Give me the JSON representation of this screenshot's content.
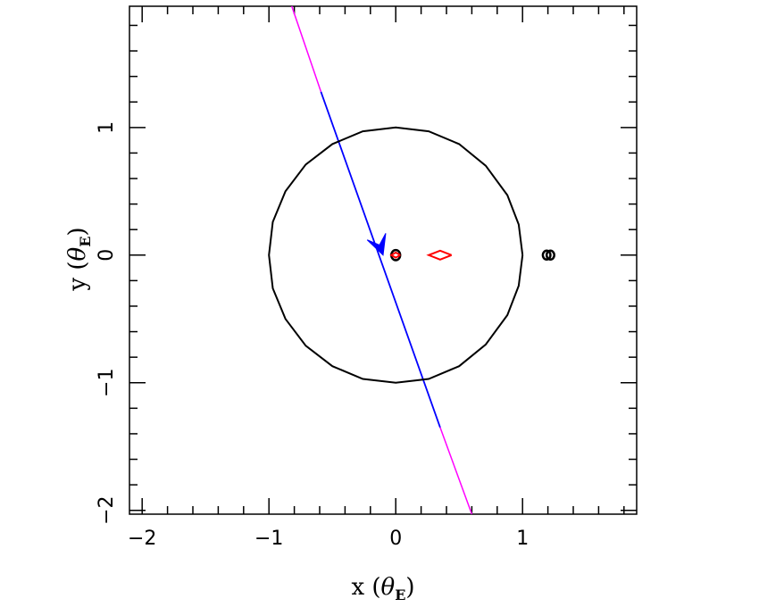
{
  "chart_data": {
    "type": "scatter",
    "title": "",
    "xlabel": {
      "prefix": "x (",
      "symbol": "θ",
      "subscript": "E",
      "suffix": ")"
    },
    "ylabel": {
      "prefix": "y (",
      "symbol": "θ",
      "subscript": "E",
      "suffix": ")"
    },
    "xlim": [
      -2.1,
      1.9
    ],
    "ylim": [
      -2.03,
      1.95
    ],
    "xticks": [
      {
        "value": -2,
        "label": "−2"
      },
      {
        "value": -1,
        "label": "−1"
      },
      {
        "value": 0,
        "label": "0"
      },
      {
        "value": 1,
        "label": "1"
      }
    ],
    "yticks": [
      {
        "value": -2,
        "label": "−2"
      },
      {
        "value": -1,
        "label": "−1"
      },
      {
        "value": 0,
        "label": "0"
      },
      {
        "value": 1,
        "label": "1"
      }
    ],
    "minor_tick_step": 0.2,
    "grid": false,
    "critical_curve": {
      "color": "#000000",
      "points": [
        [
          1.0,
          0.0
        ],
        [
          0.97,
          0.24
        ],
        [
          0.88,
          0.47
        ],
        [
          0.71,
          0.7
        ],
        [
          0.5,
          0.87
        ],
        [
          0.26,
          0.97
        ],
        [
          0.0,
          1.0
        ],
        [
          -0.26,
          0.97
        ],
        [
          -0.5,
          0.87
        ],
        [
          -0.71,
          0.71
        ],
        [
          -0.87,
          0.5
        ],
        [
          -0.97,
          0.26
        ],
        [
          -1.0,
          0.0
        ],
        [
          -0.97,
          -0.26
        ],
        [
          -0.87,
          -0.5
        ],
        [
          -0.71,
          -0.71
        ],
        [
          -0.5,
          -0.87
        ],
        [
          -0.26,
          -0.97
        ],
        [
          0.0,
          -1.0
        ],
        [
          0.26,
          -0.97
        ],
        [
          0.5,
          -0.87
        ],
        [
          0.71,
          -0.7
        ],
        [
          0.88,
          -0.47
        ],
        [
          0.97,
          -0.24
        ],
        [
          1.0,
          0.0
        ]
      ]
    },
    "small_critical_curves": {
      "color": "#000000",
      "items": [
        {
          "center": [
            0.0,
            0.0
          ],
          "rx": 0.035,
          "ry": 0.04
        },
        {
          "center": [
            1.19,
            0.0
          ],
          "rx": 0.03,
          "ry": 0.035
        },
        {
          "center": [
            1.22,
            0.0
          ],
          "rx": 0.03,
          "ry": 0.035
        }
      ]
    },
    "caustics": {
      "color": "#ff0000",
      "central": [
        [
          0.035,
          0.0
        ],
        [
          0.0,
          0.02
        ],
        [
          -0.035,
          0.0
        ],
        [
          0.0,
          -0.02
        ],
        [
          0.035,
          0.0
        ]
      ],
      "planetary": [
        [
          0.44,
          0.0
        ],
        [
          0.35,
          0.035
        ],
        [
          0.26,
          0.0
        ],
        [
          0.35,
          -0.035
        ],
        [
          0.44,
          0.0
        ]
      ]
    },
    "source_trajectory": {
      "outer_color": "#ff00ff",
      "inner_color": "#0000ff",
      "outer_segments": [
        [
          [
            -0.82,
            1.95
          ],
          [
            -0.59,
            1.28
          ]
        ],
        [
          [
            0.35,
            -1.35
          ],
          [
            0.6,
            -2.03
          ]
        ]
      ],
      "inner_segment": [
        [
          -0.59,
          1.28
        ],
        [
          0.35,
          -1.35
        ]
      ],
      "arrow_tip": [
        -0.1,
        0.0
      ],
      "direction": [
        0.336,
        -0.942
      ]
    }
  }
}
